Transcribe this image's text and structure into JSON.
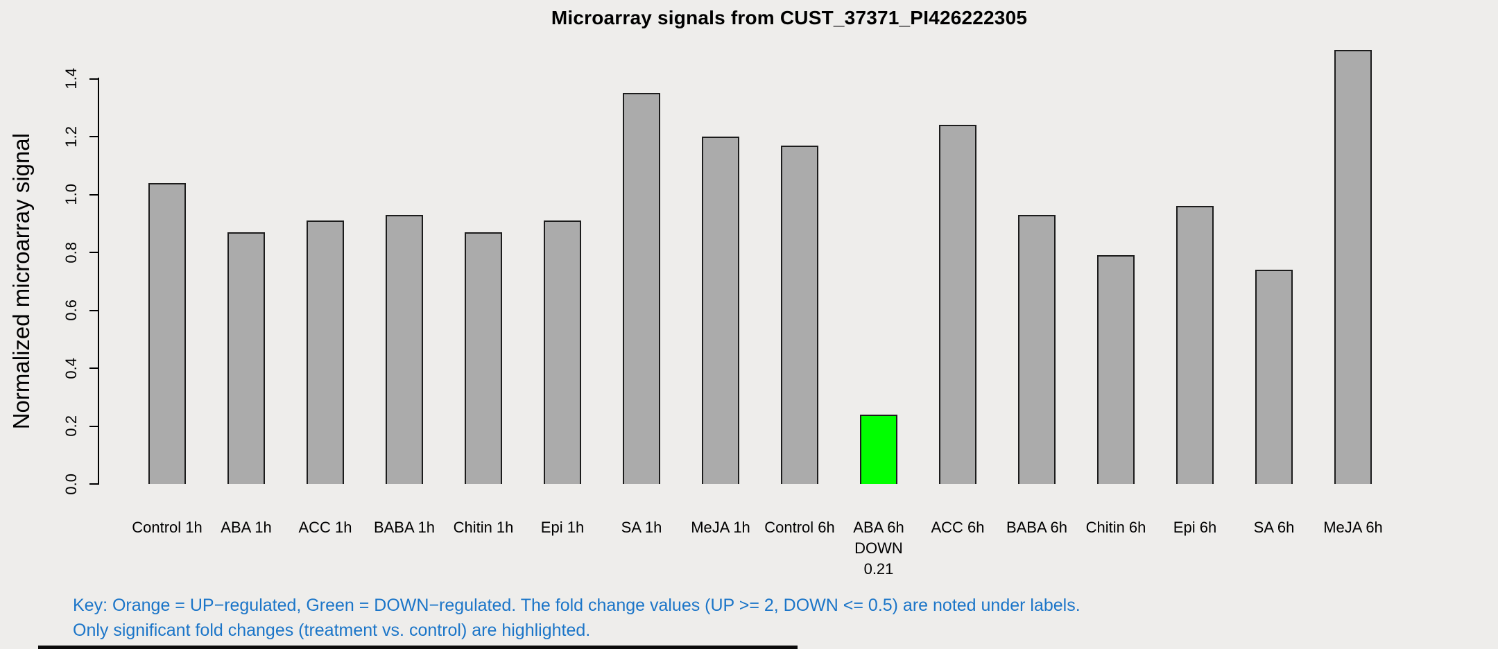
{
  "header": {
    "title": "Microarray signals from CUST_37371_PI426222305"
  },
  "colors": {
    "background": "#EEEDEB",
    "bar_fill": "#ABABAB",
    "bar_border": "#1C1C1C",
    "down_regulated": "#00FF00",
    "up_regulated": "#FFA500",
    "axis": "#000000",
    "key_text": "#1B75C8"
  },
  "key": {
    "line1": "Key: Orange = UP−regulated, Green = DOWN−regulated. The fold change values (UP >= 2, DOWN <= 0.5) are noted under labels.",
    "line2": "Only significant fold changes (treatment vs. control) are highlighted."
  },
  "chart_data": {
    "type": "bar",
    "title": "Microarray signals from CUST_37371_PI426222305",
    "xlabel": "",
    "ylabel": "Normalized microarray signal",
    "ylim": [
      0,
      1.5
    ],
    "yticks": [
      "0.0",
      "0.2",
      "0.4",
      "0.6",
      "0.8",
      "1.0",
      "1.2",
      "1.4"
    ],
    "grid": false,
    "legend": false,
    "categories": [
      "Control 1h",
      "ABA 1h",
      "ACC 1h",
      "BABA 1h",
      "Chitin 1h",
      "Epi 1h",
      "SA 1h",
      "MeJA 1h",
      "Control 6h",
      "ABA 6h",
      "ACC 6h",
      "BABA 6h",
      "Chitin 6h",
      "Epi 6h",
      "SA 6h",
      "MeJA 6h"
    ],
    "values": [
      1.04,
      0.87,
      0.91,
      0.93,
      0.87,
      0.91,
      1.35,
      1.2,
      1.17,
      0.24,
      1.24,
      0.93,
      0.79,
      0.96,
      0.74,
      1.5
    ],
    "highlights": [
      {
        "category": "ABA 6h",
        "index": 9,
        "direction": "DOWN",
        "fold_change": "0.21",
        "color": "#00FF00"
      }
    ]
  }
}
